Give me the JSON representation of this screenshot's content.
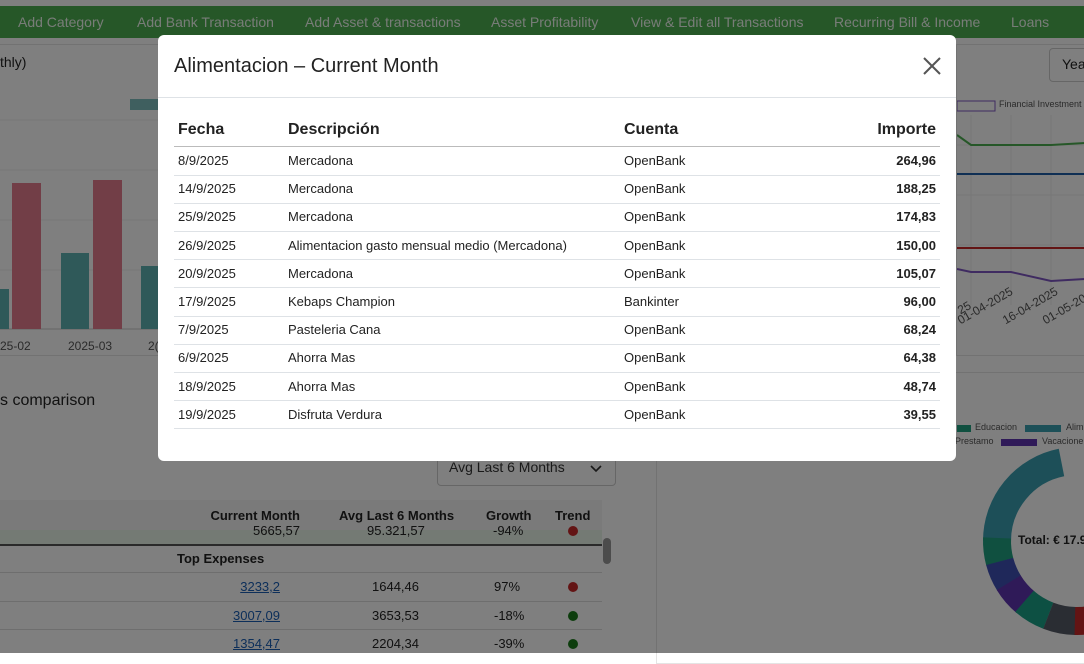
{
  "nav": {
    "items": [
      "Add Category",
      "Add Bank Transaction",
      "Add Asset & transactions",
      "Asset Profitability",
      "View & Edit all Transactions",
      "Recurring Bill & Income",
      "Loans"
    ]
  },
  "background": {
    "chart_title_fragment": "thly)",
    "bar_chart_x_labels": [
      "25-02",
      "2025-03",
      "2("
    ],
    "line_chart_legend": "Financial Investment >",
    "line_chart_x_labels": [
      "25",
      "01-04-2025",
      "16-04-2025",
      "01-05-202"
    ],
    "year_button": "Yea",
    "comparison_title": "s comparison",
    "period_select": "Avg Last 6 Months",
    "table": {
      "headers": [
        "Current Month",
        "Avg Last 6 Months",
        "Growth",
        "Trend"
      ],
      "partial_row": [
        "5665,57",
        "95.321,57",
        "-94%"
      ],
      "section": "Top Expenses",
      "rows": [
        {
          "current": "3233,2",
          "avg": "1644,46",
          "growth": "97%",
          "trend_color": "#c62828"
        },
        {
          "current": "3007,09",
          "avg": "3653,53",
          "growth": "-18%",
          "trend_color": "#1b7a1b"
        },
        {
          "current": "1354,47",
          "avg": "2204,34",
          "growth": "-39%",
          "trend_color": "#1b7a1b"
        }
      ]
    },
    "pie_legend": [
      "Educacion",
      "Alim",
      "Prestamo",
      "Vacacione"
    ],
    "pie_total": "Total: € 17.9"
  },
  "modal": {
    "title": "Alimentacion – Current Month",
    "columns": [
      "Fecha",
      "Descripción",
      "Cuenta",
      "Importe"
    ],
    "rows": [
      [
        "8/9/2025",
        "Mercadona",
        "OpenBank",
        "264,96"
      ],
      [
        "14/9/2025",
        "Mercadona",
        "OpenBank",
        "188,25"
      ],
      [
        "25/9/2025",
        "Mercadona",
        "OpenBank",
        "174,83"
      ],
      [
        "26/9/2025",
        "Alimentacion gasto mensual medio (Mercadona)",
        "OpenBank",
        "150,00"
      ],
      [
        "20/9/2025",
        "Mercadona",
        "OpenBank",
        "105,07"
      ],
      [
        "17/9/2025",
        "Kebaps Champion",
        "Bankinter",
        "96,00"
      ],
      [
        "7/9/2025",
        "Pasteleria Cana",
        "OpenBank",
        "68,24"
      ],
      [
        "6/9/2025",
        "Ahorra Mas",
        "OpenBank",
        "64,38"
      ],
      [
        "18/9/2025",
        "Ahorra Mas",
        "OpenBank",
        "48,74"
      ],
      [
        "19/9/2025",
        "Disfruta Verdura",
        "OpenBank",
        "39,55"
      ]
    ]
  }
}
